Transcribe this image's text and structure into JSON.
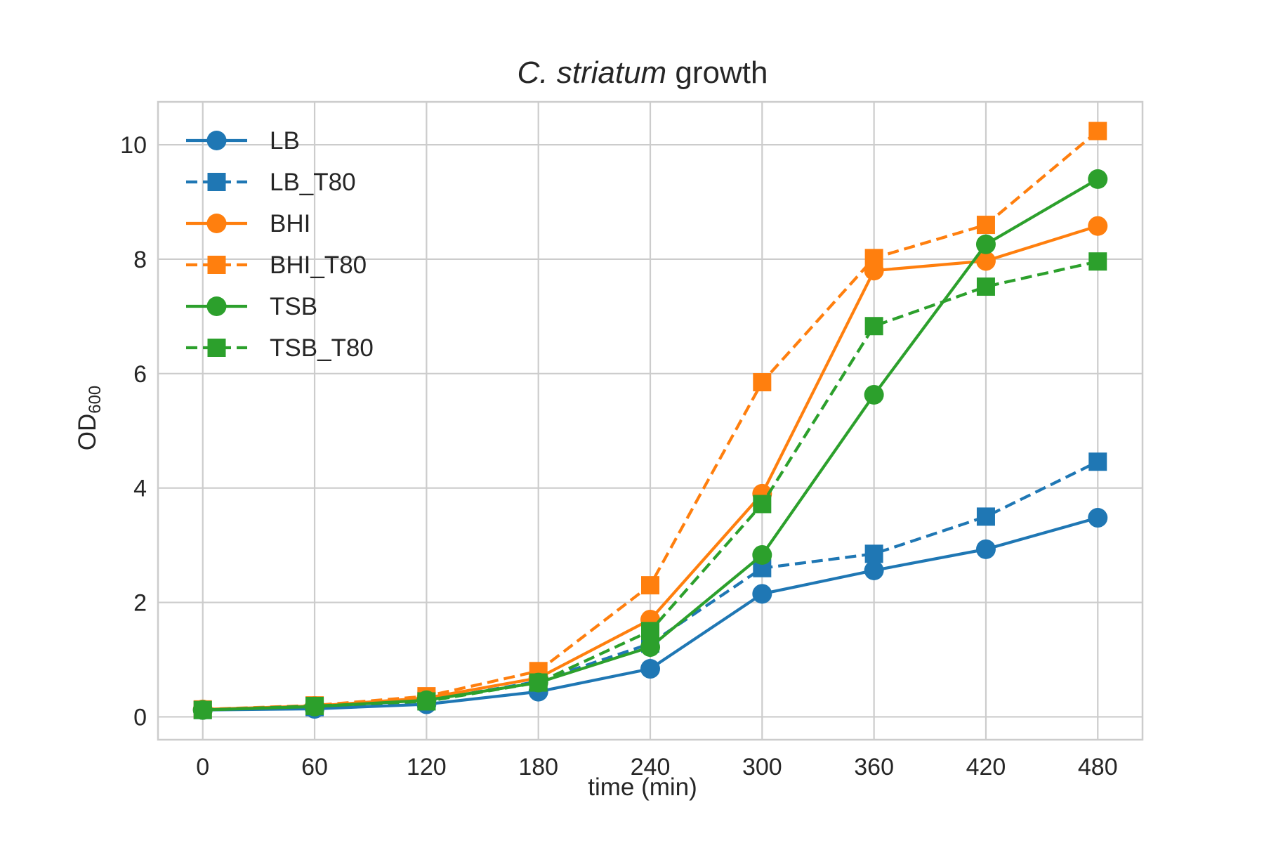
{
  "colors": {
    "blue": "#1f77b4",
    "orange": "#ff7f0e",
    "green": "#2ca02c",
    "grid": "#cccccc",
    "frame": "#cccccc",
    "text": "#262626"
  },
  "chart_data": {
    "type": "line",
    "title": "C. striatum growth",
    "title_italic": "C. striatum",
    "title_rest": " growth",
    "xlabel": "time (min)",
    "ylabel": "OD",
    "ylabel_sub": "600",
    "x": [
      0,
      60,
      120,
      180,
      240,
      300,
      360,
      420,
      480
    ],
    "xticks": [
      "0",
      "60",
      "120",
      "180",
      "240",
      "300",
      "360",
      "420",
      "480"
    ],
    "yticks": [
      "0",
      "2",
      "4",
      "6",
      "8",
      "10"
    ],
    "xlim": [
      -24,
      504
    ],
    "ylim": [
      -0.4,
      10.75
    ],
    "grid": true,
    "legend_position": "top-left",
    "series": [
      {
        "name": "LB",
        "color": "#1f77b4",
        "marker": "circle",
        "linestyle": "solid",
        "values": [
          0.12,
          0.14,
          0.22,
          0.44,
          0.84,
          2.15,
          2.56,
          2.93,
          3.48
        ]
      },
      {
        "name": "LB_T80",
        "color": "#1f77b4",
        "marker": "square",
        "linestyle": "dashed",
        "values": [
          0.12,
          0.17,
          0.28,
          0.62,
          1.28,
          2.6,
          2.85,
          3.5,
          4.46
        ]
      },
      {
        "name": "BHI",
        "color": "#ff7f0e",
        "marker": "circle",
        "linestyle": "solid",
        "values": [
          0.13,
          0.19,
          0.33,
          0.68,
          1.7,
          3.9,
          7.8,
          7.97,
          8.58
        ]
      },
      {
        "name": "BHI_T80",
        "color": "#ff7f0e",
        "marker": "square",
        "linestyle": "dashed",
        "values": [
          0.13,
          0.2,
          0.36,
          0.8,
          2.3,
          5.85,
          8.02,
          8.6,
          10.24
        ]
      },
      {
        "name": "TSB",
        "color": "#2ca02c",
        "marker": "circle",
        "linestyle": "solid",
        "values": [
          0.12,
          0.18,
          0.29,
          0.6,
          1.22,
          2.83,
          5.63,
          8.26,
          9.4
        ]
      },
      {
        "name": "TSB_T80",
        "color": "#2ca02c",
        "marker": "square",
        "linestyle": "dashed",
        "values": [
          0.12,
          0.19,
          0.27,
          0.6,
          1.5,
          3.72,
          6.83,
          7.52,
          7.96
        ]
      }
    ]
  }
}
